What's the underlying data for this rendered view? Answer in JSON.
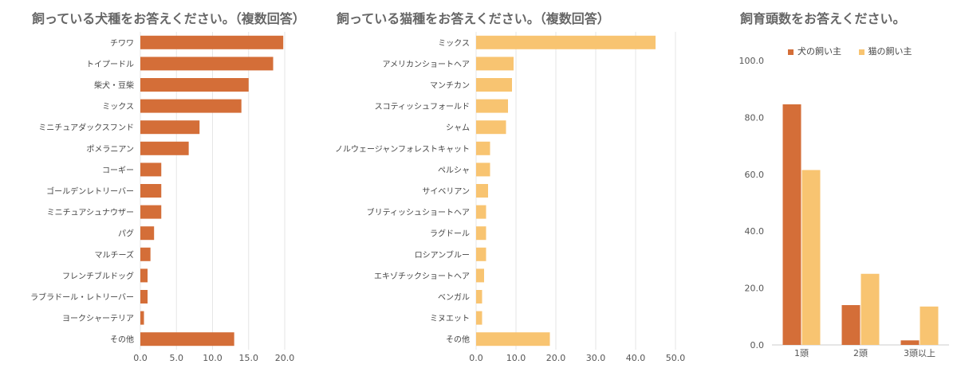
{
  "colors": {
    "dog": "#D46E38",
    "cat": "#F8C471",
    "grid": "#e6e6e6",
    "text": "#555555"
  },
  "chart_data": [
    {
      "type": "bar",
      "orientation": "horizontal",
      "title": "飼っている犬種をお答えください。（複数回答）",
      "categories": [
        "チワワ",
        "トイプードル",
        "柴犬・豆柴",
        "ミックス",
        "ミニチュアダックスフンド",
        "ポメラニアン",
        "コーギー",
        "ゴールデンレトリーバー",
        "ミニチュアシュナウザー",
        "パグ",
        "マルチーズ",
        "フレンチブルドッグ",
        "ラブラドール・レトリーバー",
        "ヨークシャーテリア",
        "その他"
      ],
      "values": [
        19.8,
        18.4,
        15.0,
        14.0,
        8.2,
        6.7,
        2.9,
        2.9,
        2.9,
        1.9,
        1.4,
        1.0,
        1.0,
        0.5,
        13.0
      ],
      "xlim": [
        0,
        20
      ],
      "xticks": [
        "0.0",
        "5.0",
        "10.0",
        "15.0",
        "20.0"
      ],
      "grid": true
    },
    {
      "type": "bar",
      "orientation": "horizontal",
      "title": "飼っている猫種をお答えください。（複数回答）",
      "categories": [
        "ミックス",
        "アメリカンショートヘア",
        "マンチカン",
        "スコティッシュフォールド",
        "シャム",
        "ノルウェージャンフォレストキャット",
        "ペルシャ",
        "サイベリアン",
        "ブリティッシュショートヘア",
        "ラグドール",
        "ロシアンブルー",
        "エキゾチックショートヘア",
        "ベンガル",
        "ミヌエット",
        "その他"
      ],
      "values": [
        45.0,
        9.4,
        9.0,
        8.0,
        7.5,
        3.5,
        3.5,
        3.0,
        2.5,
        2.5,
        2.5,
        2.0,
        1.5,
        1.5,
        18.5
      ],
      "xlim": [
        0,
        50
      ],
      "xticks": [
        "0.0",
        "10.0",
        "20.0",
        "30.0",
        "40.0",
        "50.0"
      ],
      "grid": true
    },
    {
      "type": "bar",
      "orientation": "vertical",
      "title": "飼育頭数をお答えください。",
      "categories": [
        "1頭",
        "2頭",
        "3頭以上"
      ],
      "series": [
        {
          "name": "犬の飼い主",
          "values": [
            84.6,
            14.0,
            1.6
          ]
        },
        {
          "name": "猫の飼い主",
          "values": [
            61.5,
            25.0,
            13.5
          ]
        }
      ],
      "ylim": [
        0,
        100
      ],
      "yticks": [
        "0.0",
        "20.0",
        "40.0",
        "60.0",
        "80.0",
        "100.0"
      ],
      "legend": "top",
      "grid": false
    }
  ]
}
